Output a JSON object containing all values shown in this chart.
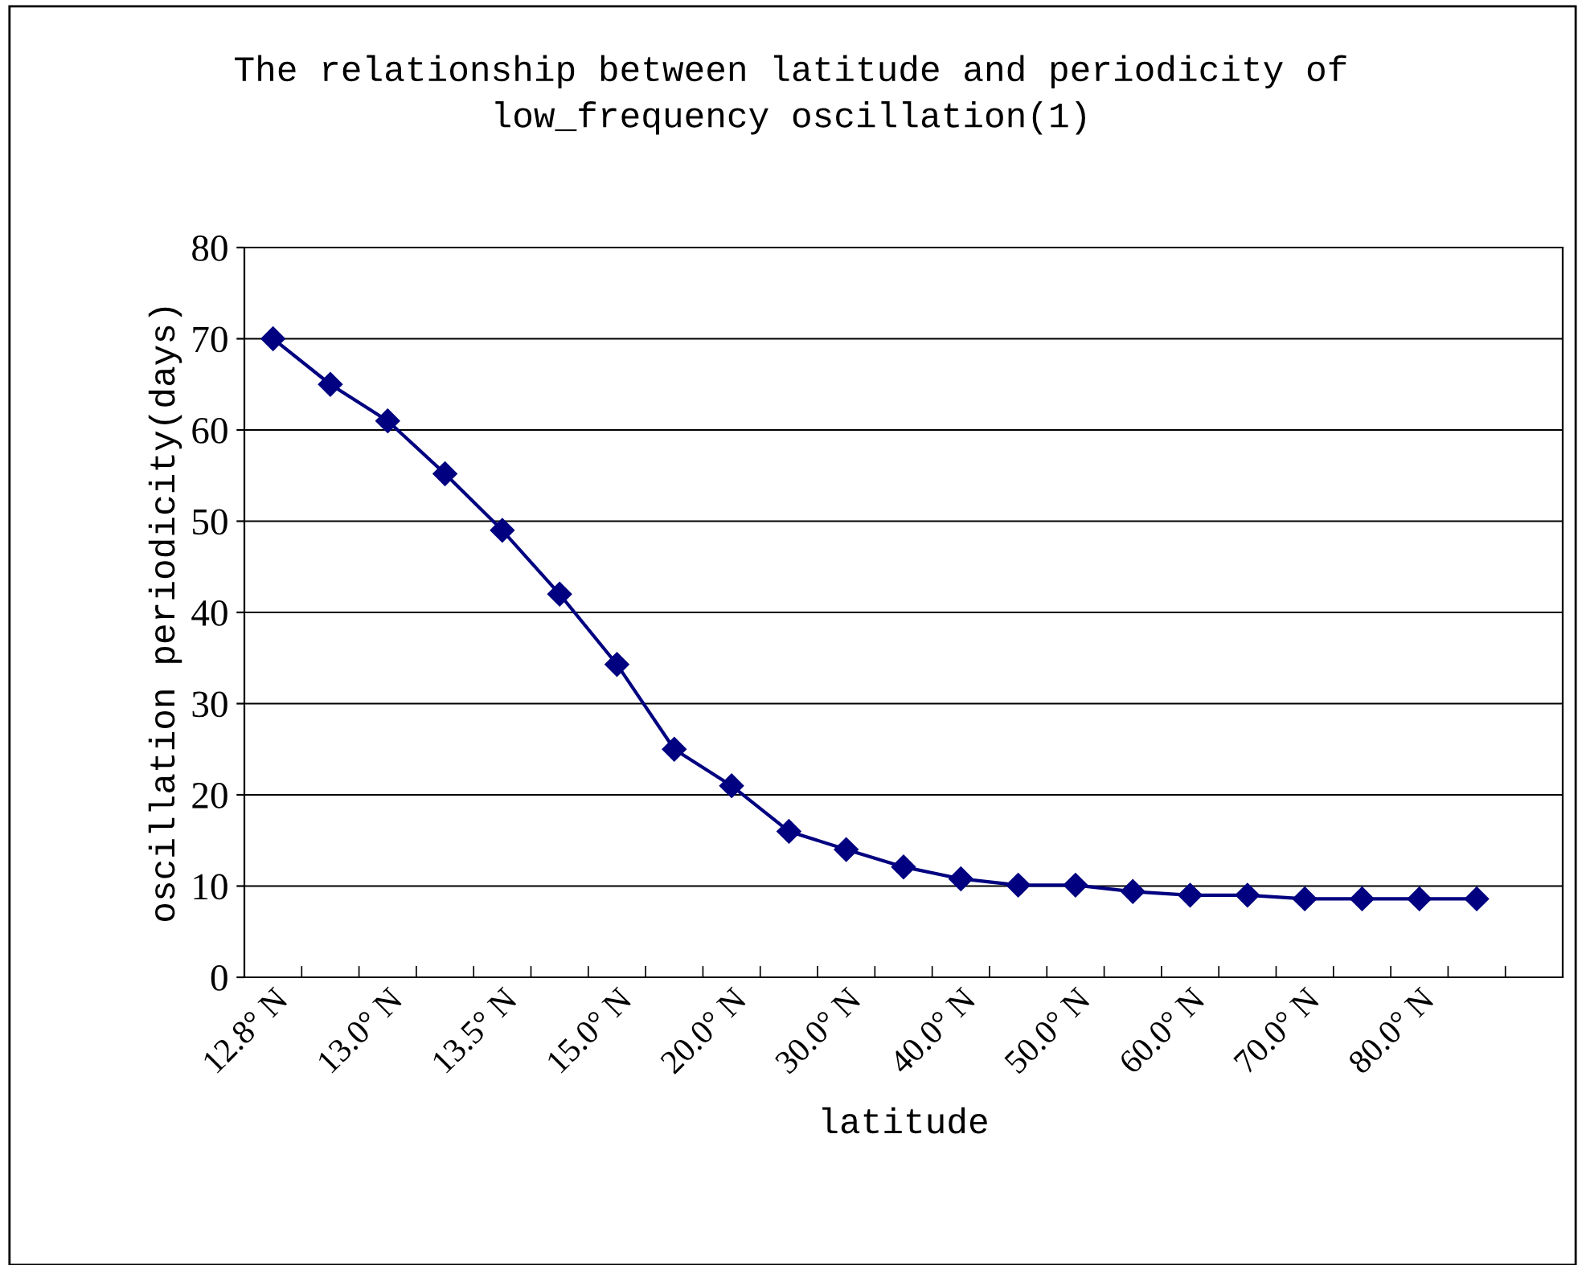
{
  "chart_data": {
    "type": "line",
    "title": "The relationship between latitude and periodicity of\nlow_frequency oscillation(1)",
    "xlabel": "latitude",
    "ylabel": "oscillation periodicity(days)",
    "categories": [
      "12.8° N",
      null,
      "13.0° N",
      null,
      "13.5° N",
      null,
      "15.0° N",
      null,
      "20.0° N",
      null,
      "30.0° N",
      null,
      "40.0° N",
      null,
      "50.0° N",
      null,
      "60.0° N",
      null,
      "70.0° N",
      null,
      "80.0° N",
      null,
      null
    ],
    "series": [
      {
        "color": "#000080",
        "values": [
          70,
          65,
          61,
          55.2,
          49,
          42,
          34.3,
          25,
          21,
          16,
          14,
          12.1,
          10.8,
          10.1,
          10.1,
          9.4,
          9,
          9,
          8.6,
          8.6,
          8.6,
          8.6,
          null
        ]
      }
    ],
    "ylim": [
      0,
      80
    ],
    "yticks": [
      0,
      10,
      20,
      30,
      40,
      50,
      60,
      70,
      80
    ],
    "grid": "y",
    "marker": "diamond",
    "line_style": "solid",
    "legend": false
  }
}
